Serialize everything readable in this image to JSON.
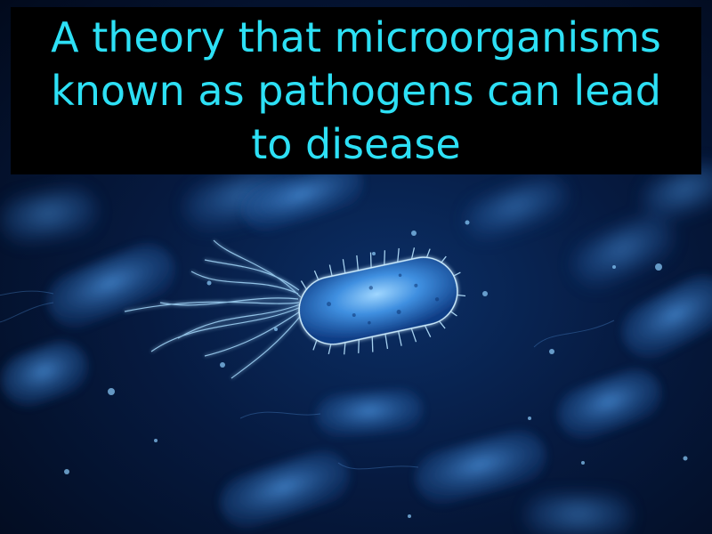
{
  "caption": {
    "text": "A theory that microorganisms known as pathogens can lead to disease"
  },
  "colors": {
    "caption_text": "#2de0f5",
    "caption_background": "#000000",
    "scene_background": "#061a40",
    "bacteria_glow": "#4aa8ff"
  }
}
